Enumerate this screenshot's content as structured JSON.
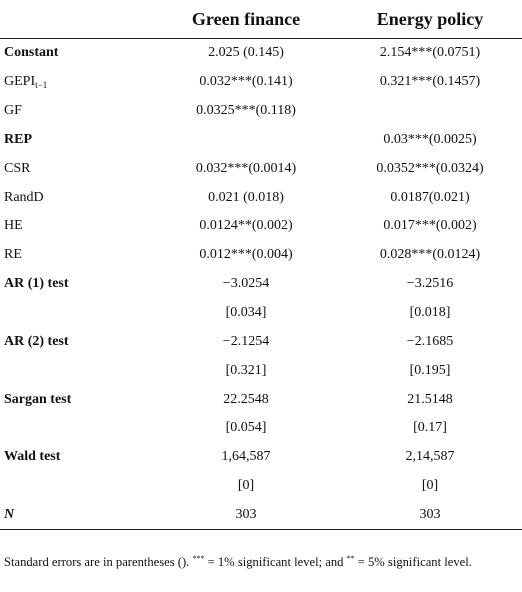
{
  "header": {
    "col1": "Green finance",
    "col2": "Energy policy"
  },
  "rows": [
    {
      "label": "Constant",
      "sub": "",
      "bold": true,
      "italic": false,
      "v1": "2.025 (0.145)",
      "v2": "2.154***(0.0751)"
    },
    {
      "label": "GEPI",
      "sub": "t−1",
      "bold": false,
      "italic": false,
      "v1": "0.032***(0.141)",
      "v2": "0.321***(0.1457)"
    },
    {
      "label": "GF",
      "sub": "",
      "bold": false,
      "italic": false,
      "v1": "0.0325***(0.118)",
      "v2": ""
    },
    {
      "label": "REP",
      "sub": "",
      "bold": true,
      "italic": false,
      "v1": "",
      "v2": "0.03***(0.0025)"
    },
    {
      "label": "CSR",
      "sub": "",
      "bold": false,
      "italic": false,
      "v1": "0.032***(0.0014)",
      "v2": "0.0352***(0.0324)"
    },
    {
      "label": "RandD",
      "sub": "",
      "bold": false,
      "italic": false,
      "v1": "0.021 (0.018)",
      "v2": "0.0187(0.021)"
    },
    {
      "label": "HE",
      "sub": "",
      "bold": false,
      "italic": false,
      "v1": "0.0124**(0.002)",
      "v2": "0.017***(0.002)"
    },
    {
      "label": "RE",
      "sub": "",
      "bold": false,
      "italic": false,
      "v1": "0.012***(0.004)",
      "v2": "0.028***(0.0124)"
    },
    {
      "label": "AR (1) test",
      "sub": "",
      "bold": true,
      "italic": false,
      "v1": "−3.0254",
      "v2": "−3.2516"
    },
    {
      "label": "",
      "sub": "",
      "bold": false,
      "italic": false,
      "v1": "[0.034]",
      "v2": "[0.018]"
    },
    {
      "label": "AR (2) test",
      "sub": "",
      "bold": true,
      "italic": false,
      "v1": "−2.1254",
      "v2": "−2.1685"
    },
    {
      "label": "",
      "sub": "",
      "bold": false,
      "italic": false,
      "v1": "[0.321]",
      "v2": "[0.195]"
    },
    {
      "label": "Sargan test",
      "sub": "",
      "bold": true,
      "italic": false,
      "v1": "22.2548",
      "v2": "21.5148"
    },
    {
      "label": "",
      "sub": "",
      "bold": false,
      "italic": false,
      "v1": "[0.054]",
      "v2": "[0.17]"
    },
    {
      "label": "Wald test",
      "sub": "",
      "bold": true,
      "italic": false,
      "v1": "1,64,587",
      "v2": "2,14,587"
    },
    {
      "label": "",
      "sub": "",
      "bold": false,
      "italic": false,
      "v1": "[0]",
      "v2": "[0]"
    },
    {
      "label": "N",
      "sub": "",
      "bold": true,
      "italic": true,
      "v1": "303",
      "v2": "303"
    }
  ],
  "note": {
    "part1": "Standard errors are in parentheses (). ",
    "sup1": "***",
    "part2": " = 1% significant level; and ",
    "sup2": "**",
    "part3": " = 5% significant level."
  }
}
